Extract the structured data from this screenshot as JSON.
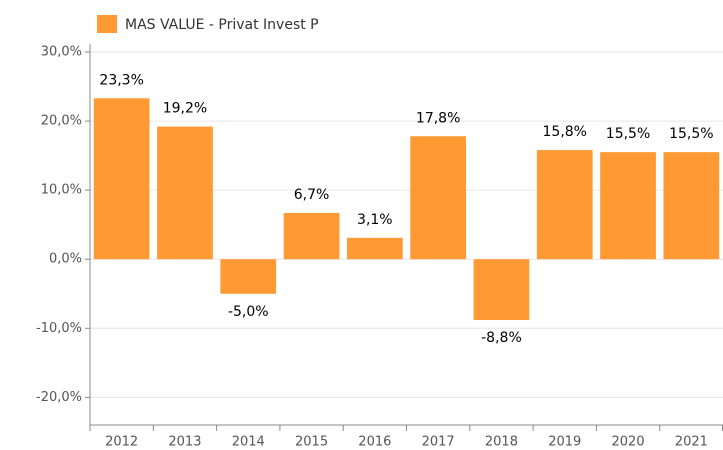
{
  "chart_data": {
    "type": "bar",
    "categories": [
      "2012",
      "2013",
      "2014",
      "2015",
      "2016",
      "2017",
      "2018",
      "2019",
      "2020",
      "2021"
    ],
    "series": [
      {
        "name": "MAS VALUE - Privat Invest P",
        "color": "#ff9933",
        "values": [
          23.3,
          19.2,
          -5.0,
          6.7,
          3.1,
          17.8,
          -8.8,
          15.8,
          15.5,
          15.5
        ],
        "value_labels": [
          "23,3%",
          "19,2%",
          "-5,0%",
          "6,7%",
          "3,1%",
          "17,8%",
          "-8,8%",
          "15,8%",
          "15,5%",
          "15,5%"
        ]
      }
    ],
    "ylim": [
      -24,
      30
    ],
    "yticks": [
      {
        "value": -20,
        "label": "-20,0%"
      },
      {
        "value": -10,
        "label": "-10,0%"
      },
      {
        "value": 0,
        "label": "0,0%"
      },
      {
        "value": 10,
        "label": "10,0%"
      },
      {
        "value": 20,
        "label": "20,0%"
      },
      {
        "value": 30,
        "label": "30,0%"
      }
    ],
    "grid": true,
    "legend": "top"
  }
}
